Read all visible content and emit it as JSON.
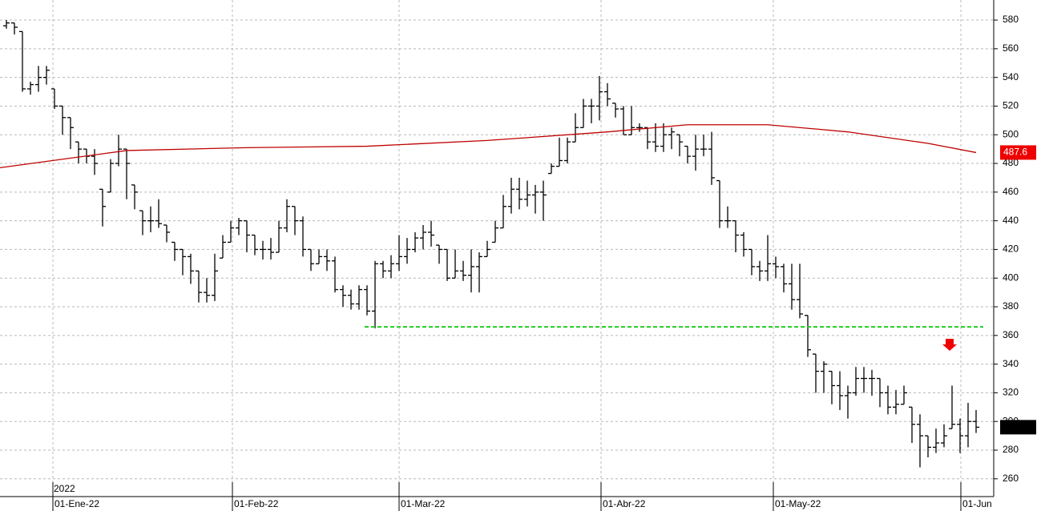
{
  "chart_data": {
    "type": "ohlc",
    "year_label": "2022",
    "color": "#000000",
    "open": [
      576,
      578,
      572,
      532,
      535,
      540,
      532,
      520,
      512,
      495,
      490,
      485,
      462,
      460,
      480,
      490,
      465,
      447,
      440,
      440,
      437,
      425,
      420,
      415,
      405,
      390,
      388,
      414,
      425,
      435,
      440,
      430,
      420,
      420,
      418,
      435,
      450,
      440,
      420,
      410,
      415,
      412,
      392,
      388,
      382,
      392,
      377,
      410,
      405,
      410,
      415,
      420,
      428,
      432,
      423,
      420,
      400,
      405,
      402,
      408,
      415,
      425,
      435,
      450,
      462,
      455,
      458,
      460,
      473,
      478,
      482,
      495,
      505,
      520,
      520,
      530,
      522,
      518,
      500,
      505,
      505,
      495,
      492,
      500,
      500,
      492,
      485,
      490,
      490,
      468,
      440,
      440,
      430,
      420,
      408,
      405,
      410,
      408,
      396,
      385,
      374,
      347,
      335,
      335,
      325,
      318,
      320,
      330,
      330,
      330,
      320,
      310,
      312,
      310,
      298,
      290,
      282,
      285,
      295,
      298,
      290,
      300
    ],
    "high": [
      580,
      578,
      572,
      537,
      548,
      548,
      532,
      520,
      512,
      495,
      490,
      490,
      462,
      483,
      500,
      490,
      465,
      447,
      450,
      455,
      437,
      425,
      420,
      417,
      405,
      400,
      417,
      430,
      440,
      442,
      440,
      430,
      426,
      428,
      440,
      455,
      450,
      443,
      420,
      420,
      420,
      415,
      395,
      392,
      395,
      395,
      412,
      412,
      416,
      430,
      428,
      432,
      437,
      440,
      423,
      420,
      420,
      412,
      420,
      418,
      426,
      440,
      458,
      470,
      470,
      468,
      465,
      468,
      480,
      498,
      498,
      515,
      525,
      525,
      541,
      536,
      522,
      520,
      520,
      508,
      505,
      508,
      508,
      505,
      500,
      492,
      500,
      500,
      502,
      468,
      450,
      440,
      432,
      420,
      412,
      430,
      415,
      410,
      410,
      410,
      374,
      347,
      342,
      335,
      335,
      325,
      338,
      338,
      336,
      330,
      325,
      322,
      325,
      310,
      305,
      290,
      295,
      298,
      325,
      302,
      313,
      308
    ],
    "low": [
      574,
      570,
      530,
      528,
      530,
      535,
      518,
      500,
      490,
      480,
      480,
      472,
      436,
      460,
      478,
      455,
      448,
      430,
      432,
      435,
      425,
      412,
      402,
      396,
      383,
      383,
      384,
      414,
      425,
      430,
      418,
      416,
      413,
      413,
      418,
      432,
      430,
      415,
      405,
      410,
      405,
      390,
      380,
      378,
      378,
      374,
      365,
      400,
      400,
      405,
      410,
      418,
      420,
      422,
      410,
      398,
      400,
      398,
      390,
      390,
      415,
      425,
      435,
      445,
      448,
      450,
      445,
      440,
      473,
      478,
      480,
      495,
      505,
      508,
      510,
      520,
      512,
      500,
      500,
      502,
      490,
      488,
      488,
      490,
      485,
      480,
      475,
      485,
      465,
      435,
      435,
      418,
      415,
      402,
      398,
      398,
      400,
      390,
      378,
      372,
      345,
      320,
      320,
      312,
      308,
      302,
      318,
      320,
      318,
      310,
      305,
      305,
      312,
      285,
      268,
      275,
      278,
      282,
      295,
      278,
      282,
      292
    ],
    "close": [
      578,
      575,
      532,
      535,
      540,
      545,
      520,
      512,
      505,
      490,
      485,
      480,
      450,
      480,
      490,
      480,
      460,
      440,
      440,
      438,
      432,
      420,
      415,
      405,
      390,
      388,
      405,
      425,
      435,
      440,
      430,
      420,
      420,
      418,
      435,
      450,
      440,
      420,
      410,
      415,
      412,
      392,
      388,
      382,
      392,
      377,
      410,
      405,
      410,
      415,
      420,
      428,
      432,
      430,
      420,
      400,
      405,
      402,
      408,
      415,
      420,
      435,
      450,
      462,
      455,
      458,
      460,
      458,
      478,
      482,
      495,
      505,
      520,
      520,
      530,
      525,
      518,
      500,
      505,
      505,
      495,
      492,
      500,
      502,
      495,
      485,
      490,
      490,
      470,
      440,
      440,
      430,
      420,
      408,
      405,
      410,
      408,
      396,
      385,
      375,
      350,
      335,
      340,
      325,
      318,
      320,
      330,
      330,
      330,
      320,
      310,
      312,
      320,
      298,
      290,
      282,
      285,
      290,
      298,
      290,
      300,
      296
    ],
    "moving_average": {
      "color": "#c00000",
      "x": [
        -0.8,
        15,
        30,
        45,
        60,
        75,
        85,
        95,
        105,
        115,
        121
      ],
      "values": [
        477,
        489,
        491,
        492,
        496,
        502,
        507,
        507,
        502,
        494,
        487.6
      ]
    },
    "support": {
      "color": "#22cc22",
      "value": 366,
      "x": [
        44.7,
        121.9
      ]
    },
    "price_tags": [
      {
        "value": 487.6,
        "label": "487.6",
        "color": "#ee0000"
      }
    ],
    "xlim": [
      -0.8,
      123.2
    ],
    "ylim": [
      247.6,
      594
    ],
    "xticks": [
      {
        "value": 5.8,
        "label": "01-Ene-22"
      },
      {
        "value": 28.2,
        "label": "01-Feb-22"
      },
      {
        "value": 49,
        "label": "01-Mar-22"
      },
      {
        "value": 74.2,
        "label": "01-Abr-22"
      },
      {
        "value": 95.7,
        "label": "01-May-22"
      },
      {
        "value": 119.1,
        "label": "01-Jun"
      }
    ],
    "yticks": [
      260,
      280,
      300,
      320,
      340,
      360,
      380,
      400,
      420,
      440,
      460,
      480,
      500,
      520,
      540,
      560,
      580
    ],
    "grid": true
  }
}
